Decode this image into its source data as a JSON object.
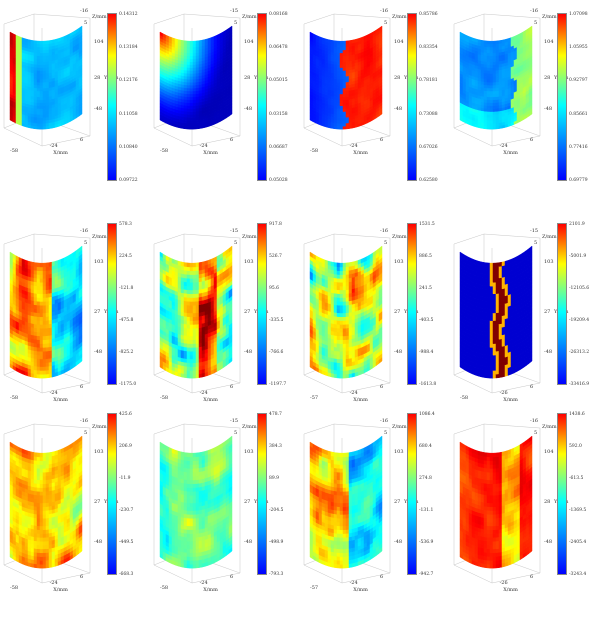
{
  "axis_labels": {
    "x": "X/mm",
    "y": "Y/mm",
    "z": "Z/mm"
  },
  "panels": [
    {
      "id": "r1c1",
      "axis": {
        "z_top": "-16",
        "z_mid": "5",
        "y1": "104",
        "y2": "28",
        "y3": "-48",
        "x1": "-58",
        "x2": "-24",
        "x3": "6"
      },
      "colorbar": [
        "0.14312",
        "0.13184",
        "0.12176",
        "0.11058",
        "0.10840",
        "0.09722"
      ],
      "field": "c1"
    },
    {
      "id": "r1c2",
      "axis": {
        "z_top": "-15",
        "z_mid": "5",
        "y1": "104",
        "y2": "28",
        "y3": "-48",
        "x1": "-58",
        "x2": "-24",
        "x3": "6"
      },
      "colorbar": [
        "0.08168",
        "0.06478",
        "0.05015",
        "0.03158",
        "0.06687",
        "0.05028"
      ],
      "field": "c2"
    },
    {
      "id": "r1c3",
      "axis": {
        "z_top": "-16",
        "z_mid": "5",
        "y1": "104",
        "y2": "28",
        "y3": "-48",
        "x1": "-58",
        "x2": "-24",
        "x3": "6"
      },
      "colorbar": [
        "0.85786",
        "0.83354",
        "0.78181",
        "0.73088",
        "0.67026",
        "0.62580"
      ],
      "field": "c3"
    },
    {
      "id": "r1c4",
      "axis": {
        "z_top": "-16",
        "z_mid": "5",
        "y1": "104",
        "y2": "28",
        "y3": "-48",
        "x1": "",
        "x2": "-24",
        "x3": "6"
      },
      "colorbar": [
        "1.07098",
        "1.05955",
        "0.92797",
        "0.85661",
        "0.77416",
        "0.69779"
      ],
      "field": "c4"
    },
    {
      "id": "r2c1",
      "axis": {
        "z_top": "-16",
        "z_mid": "5",
        "y1": "103",
        "y2": "27",
        "y3": "-48",
        "x1": "-58",
        "x2": "-24",
        "x3": "6"
      },
      "colorbar": [
        "578.3",
        "224.5",
        "-121.8",
        "-475.8",
        "-825.2",
        "-1175.0"
      ],
      "field": "m1"
    },
    {
      "id": "r2c2",
      "axis": {
        "z_top": "-15",
        "z_mid": "5",
        "y1": "103",
        "y2": "27",
        "y3": "-48",
        "x1": "-58",
        "x2": "-24",
        "x3": "6"
      },
      "colorbar": [
        "917.8",
        "526.7",
        "95.6",
        "-335.5",
        "-766.6",
        "-1197.7"
      ],
      "field": "m2"
    },
    {
      "id": "r2c3",
      "axis": {
        "z_top": "-16",
        "z_mid": "5",
        "y1": "103",
        "y2": "27",
        "y3": "-48",
        "x1": "-57",
        "x2": "-24",
        "x3": "6"
      },
      "colorbar": [
        "1531.5",
        "886.5",
        "241.5",
        "-403.5",
        "-988.4",
        "-1613.8"
      ],
      "field": "m3"
    },
    {
      "id": "r2c4",
      "axis": {
        "z_top": "-15",
        "z_mid": "5",
        "y1": "103",
        "y2": "27",
        "y3": "-48",
        "x1": "-58",
        "x2": "-26",
        "x3": "6"
      },
      "colorbar": [
        "2101.9",
        "-5001.9",
        "-12105.6",
        "-19209.4",
        "-26313.2",
        "-33416.9"
      ],
      "field": "m4"
    },
    {
      "id": "r3c1",
      "axis": {
        "z_top": "-16",
        "z_mid": "5",
        "y1": "103",
        "y2": "27",
        "y3": "-48",
        "x1": "-58",
        "x2": "-24",
        "x3": "6"
      },
      "colorbar": [
        "425.6",
        "206.9",
        "-11.9",
        "-230.7",
        "-449.5",
        "-668.3"
      ],
      "field": "b1"
    },
    {
      "id": "r3c2",
      "axis": {
        "z_top": "-15",
        "z_mid": "5",
        "y1": "103",
        "y2": "27",
        "y3": "-48",
        "x1": "-58",
        "x2": "-24",
        "x3": "6"
      },
      "colorbar": [
        "478.7",
        "384.3",
        "89.9",
        "-204.5",
        "-498.9",
        "-793.3"
      ],
      "field": "b2"
    },
    {
      "id": "r3c3",
      "axis": {
        "z_top": "-16",
        "z_mid": "5",
        "y1": "103",
        "y2": "27",
        "y3": "-48",
        "x1": "-57",
        "x2": "-24",
        "x3": "6"
      },
      "colorbar": [
        "1086.4",
        "680.4",
        "274.8",
        "-131.1",
        "-536.9",
        "-942.7"
      ],
      "field": "b3"
    },
    {
      "id": "r3c4",
      "axis": {
        "z_top": "-16",
        "z_mid": "5",
        "y1": "104",
        "y2": "28",
        "y3": "-48",
        "x1": "",
        "x2": "-26",
        "x3": "6"
      },
      "colorbar": [
        "1438.6",
        "592.0",
        "-613.5",
        "-1369.5",
        "-2405.4",
        "-3243.4"
      ],
      "field": "b4"
    }
  ]
}
